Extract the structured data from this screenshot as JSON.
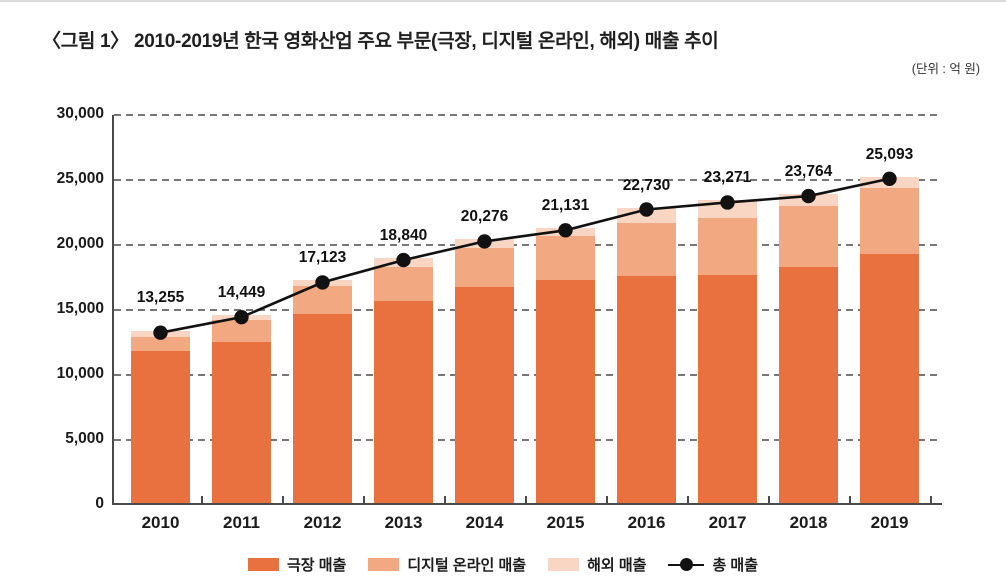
{
  "header": {
    "title": "〈그림 1〉 2010-2019년 한국 영화산업 주요 부문(극장, 디지털 온라인, 해외) 매출 추이",
    "unit": "(단위 : 억 원)"
  },
  "chart_data": {
    "type": "bar",
    "subtype": "stacked-bar-with-total-line",
    "title": "2010-2019년 한국 영화산업 주요 부문(극장, 디지털 온라인, 해외) 매출 추이",
    "unit": "억 원",
    "categories": [
      "2010",
      "2011",
      "2012",
      "2013",
      "2014",
      "2015",
      "2016",
      "2017",
      "2018",
      "2019"
    ],
    "series": [
      {
        "name": "극장 매출",
        "type": "bar",
        "color": "#E8713F",
        "values": [
          11684,
          12358,
          14551,
          15513,
          16641,
          17154,
          17432,
          17566,
          18140,
          19140
        ]
      },
      {
        "name": "디지털 온라인 매출",
        "type": "bar",
        "color": "#F2A982",
        "values": [
          1109,
          1709,
          2158,
          2676,
          2971,
          3349,
          4125,
          4362,
          4739,
          5093
        ]
      },
      {
        "name": "해외 매출",
        "type": "bar",
        "color": "#F9D6C3",
        "values": [
          462,
          382,
          414,
          651,
          664,
          628,
          1173,
          1343,
          885,
          860
        ]
      },
      {
        "name": "총 매출",
        "type": "line",
        "color": "#111111",
        "marker": "circle",
        "data_labels": true,
        "values": [
          13255,
          14449,
          17123,
          18840,
          20276,
          21131,
          22730,
          23271,
          23764,
          25093
        ]
      }
    ],
    "ylim": [
      0,
      30000
    ],
    "ytick_step": 5000,
    "grid": "horizontal-dashed",
    "legend_position": "bottom"
  }
}
